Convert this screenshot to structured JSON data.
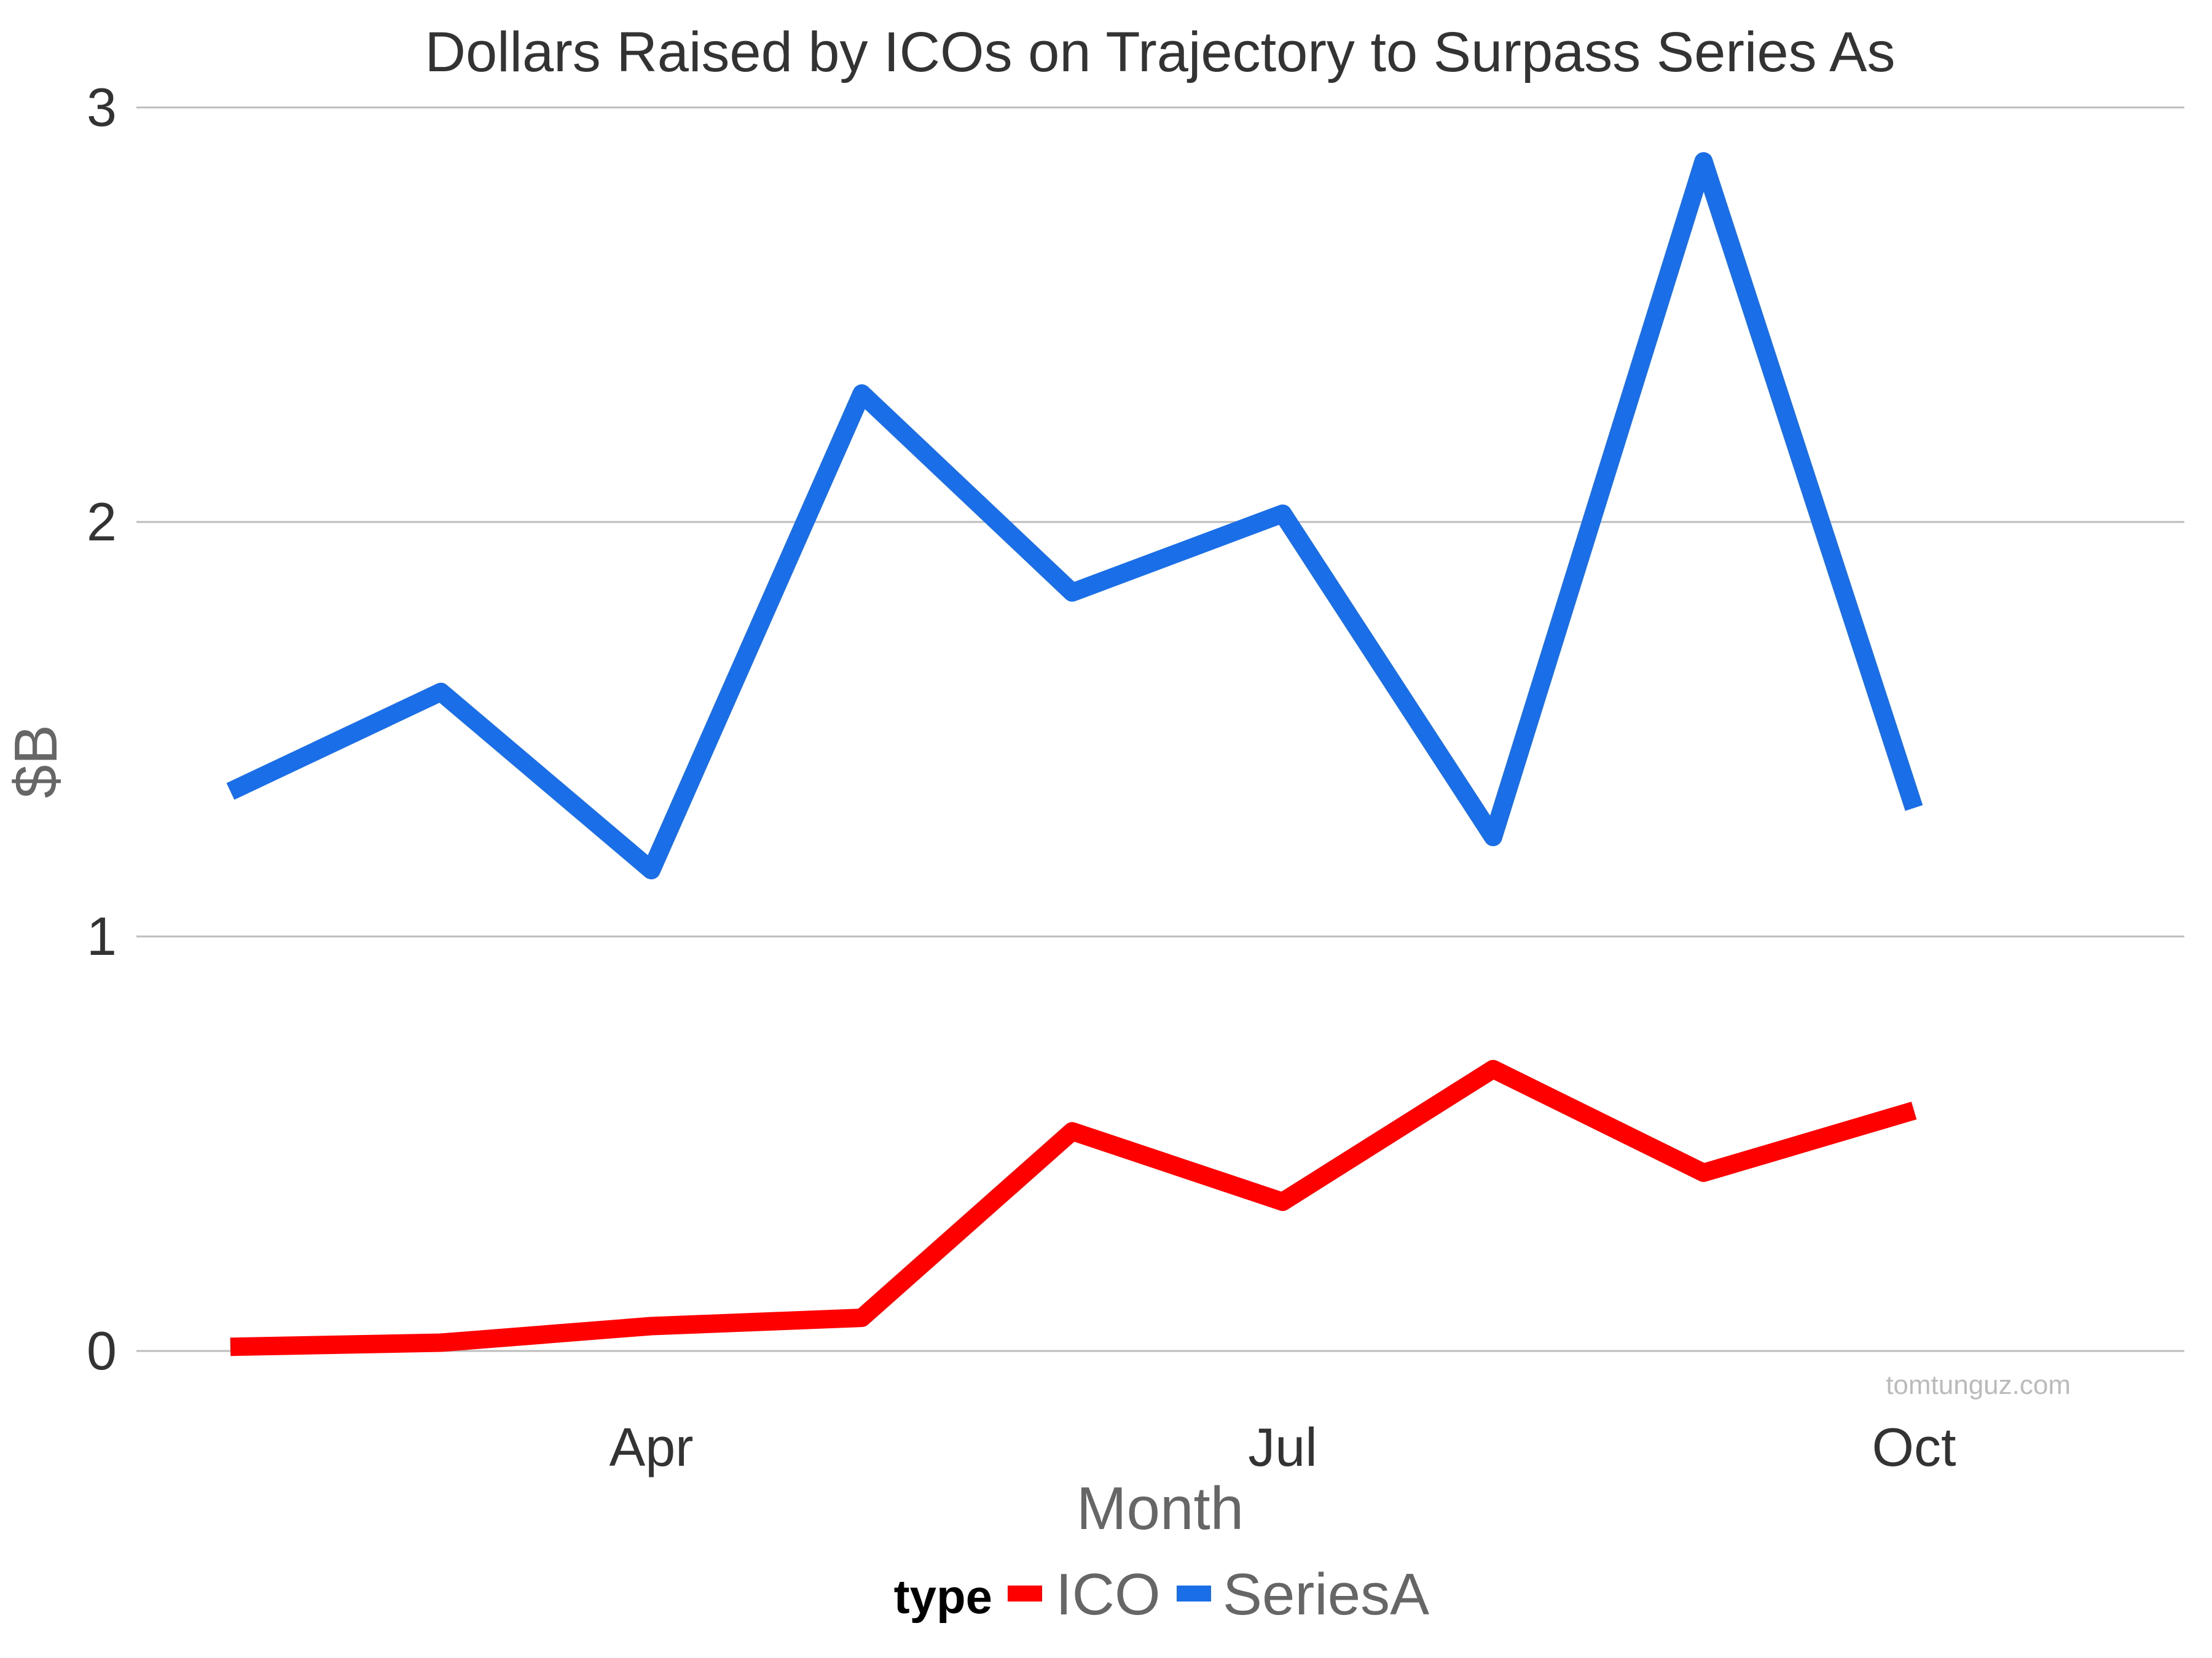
{
  "chart_data": {
    "type": "line",
    "title": "Dollars Raised by ICOs on Trajectory to Surpass Series As",
    "xlabel": "Month",
    "ylabel": "$B",
    "x": [
      "2017-01",
      "2017-02",
      "2017-03",
      "2017-04",
      "2017-05",
      "2017-06",
      "2017-07",
      "2017-08",
      "2017-09"
    ],
    "x_ticks": [
      {
        "at": "2017-03",
        "label": "Apr"
      },
      {
        "at": "2017-06",
        "label": "Jul"
      },
      {
        "at": "2017-09",
        "label": "Oct"
      }
    ],
    "y_ticks": [
      "0",
      "1",
      "2",
      "3"
    ],
    "ylim": [
      -0.16,
      3.2
    ],
    "grid": true,
    "series": [
      {
        "name": "ICO",
        "color": "#ff0000",
        "values": [
          0.01,
          0.02,
          0.06,
          0.08,
          0.53,
          0.36,
          0.68,
          0.43,
          0.58
        ]
      },
      {
        "name": "SeriesA",
        "color": "#1a6ee8",
        "values": [
          1.35,
          1.59,
          1.16,
          2.31,
          1.83,
          2.02,
          1.24,
          2.87,
          1.31
        ]
      }
    ],
    "legend": {
      "title": "type",
      "position": "bottom"
    },
    "watermark": "tomtunguz.com"
  }
}
